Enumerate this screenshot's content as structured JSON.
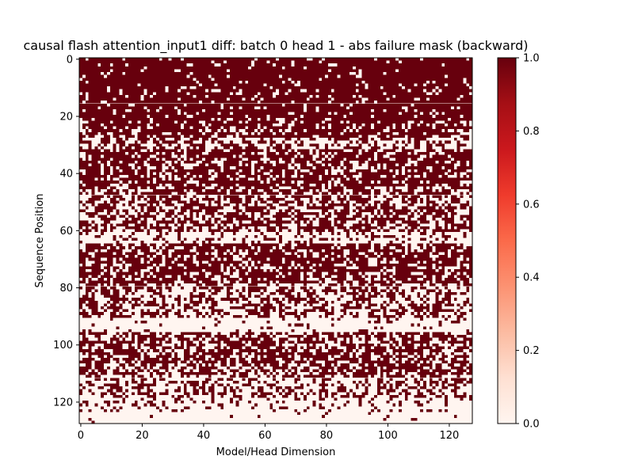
{
  "chart_data": {
    "type": "heatmap",
    "title": "causal flash attention_input1 diff: batch 0 head 1 - abs failure mask (backward)",
    "xlabel": "Model/Head Dimension",
    "ylabel": "Sequence Position",
    "x_ticks": [
      "0",
      "20",
      "40",
      "60",
      "80",
      "100",
      "120"
    ],
    "y_ticks": [
      "0",
      "20",
      "40",
      "60",
      "80",
      "100",
      "120"
    ],
    "x_range": [
      0,
      128
    ],
    "y_range": [
      0,
      128
    ],
    "colorbar": {
      "colormap": "Reds",
      "range": [
        0.0,
        1.0
      ],
      "ticks": [
        "0.0",
        "0.2",
        "0.4",
        "0.6",
        "0.8",
        "1.0"
      ],
      "low_color": "#fff5f0",
      "mid_color": "#fb6a4a",
      "high_color": "#67000d"
    },
    "grid": false,
    "cells": {
      "rows": 128,
      "cols": 128,
      "values": "binary failure mask (0 or 1)",
      "row_failure_density": [
        {
          "rows": [
            0,
            9
          ],
          "fraction_one": 0.93
        },
        {
          "rows": [
            10,
            21
          ],
          "fraction_one": 0.88
        },
        {
          "rows": [
            22,
            27
          ],
          "fraction_one": 0.78
        },
        {
          "rows": [
            28,
            31
          ],
          "fraction_one": 0.45
        },
        {
          "rows": [
            32,
            44
          ],
          "fraction_one": 0.72
        },
        {
          "rows": [
            45,
            60
          ],
          "fraction_one": 0.58
        },
        {
          "rows": [
            61,
            64
          ],
          "fraction_one": 0.22
        },
        {
          "rows": [
            65,
            78
          ],
          "fraction_one": 0.7
        },
        {
          "rows": [
            79,
            90
          ],
          "fraction_one": 0.48
        },
        {
          "rows": [
            91,
            95
          ],
          "fraction_one": 0.08
        },
        {
          "rows": [
            96,
            110
          ],
          "fraction_one": 0.62
        },
        {
          "rows": [
            111,
            118
          ],
          "fraction_one": 0.4
        },
        {
          "rows": [
            119,
            123
          ],
          "fraction_one": 0.18
        },
        {
          "rows": [
            124,
            127
          ],
          "fraction_one": 0.03
        }
      ]
    }
  }
}
